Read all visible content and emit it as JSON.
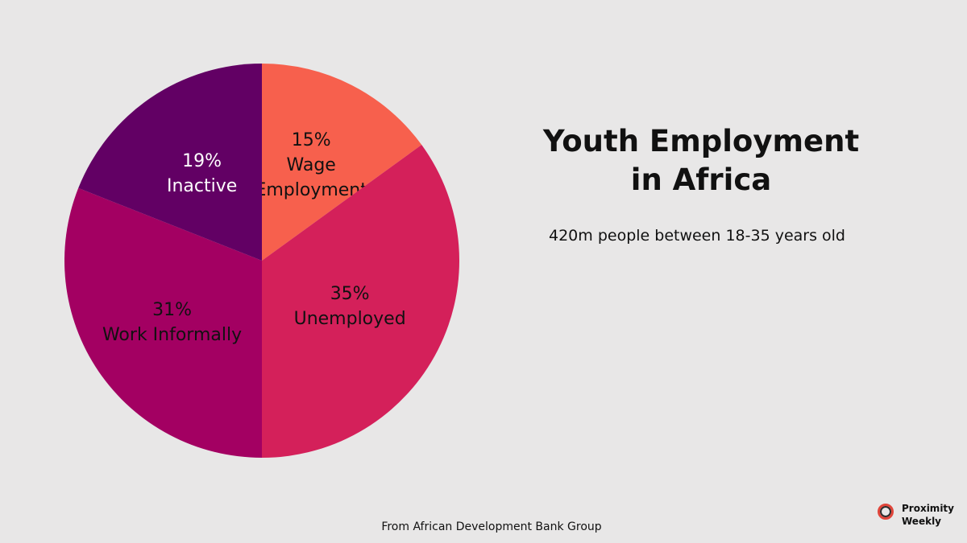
{
  "chart_data": {
    "type": "pie",
    "title": "Youth Employment in Africa",
    "title_lines": [
      "Youth Employment",
      "in Africa"
    ],
    "subtitle": "420m people between 18-35 years old",
    "slices": [
      {
        "label": "Wage Employment",
        "value": 15,
        "percent_label": "15%",
        "label_lines": [
          "15%",
          "Wage",
          "Employment"
        ],
        "color": "#f7604d",
        "text_color": "#111111"
      },
      {
        "label": "Unemployed",
        "value": 35,
        "percent_label": "35%",
        "label_lines": [
          "35%",
          "Unemployed"
        ],
        "color": "#d4205a",
        "text_color": "#111111"
      },
      {
        "label": "Work Informally",
        "value": 31,
        "percent_label": "31%",
        "label_lines": [
          "31%",
          "Work Informally"
        ],
        "color": "#a30062",
        "text_color": "#111111"
      },
      {
        "label": "Inactive",
        "value": 19,
        "percent_label": "19%",
        "label_lines": [
          "19%",
          "Inactive"
        ],
        "color": "#620064",
        "text_color": "#ffffff"
      }
    ],
    "start_angle": "12 o'clock",
    "direction": "clockwise"
  },
  "footer": {
    "source": "From African Development Bank Group"
  },
  "brand": {
    "line1": "Proximity",
    "line2": "Weekly",
    "logo_icon": "ring-logo-icon",
    "logo_color": "#e0453a"
  }
}
